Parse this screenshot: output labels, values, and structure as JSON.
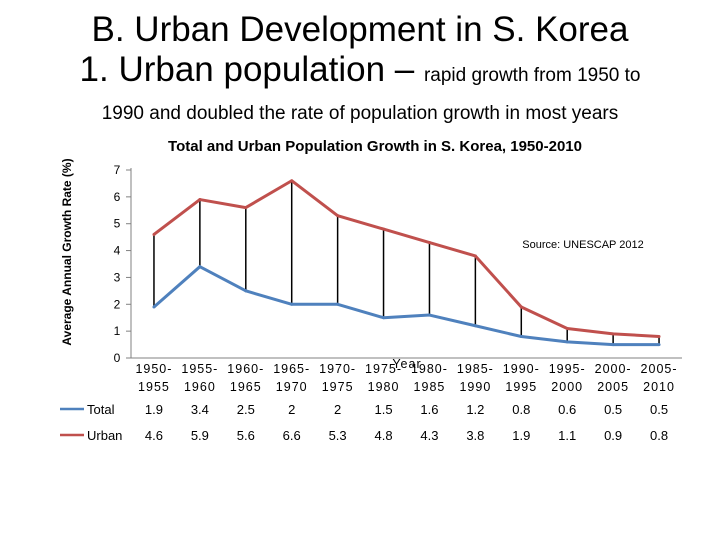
{
  "slide": {
    "title_line1": "B. Urban Development in S. Korea",
    "title_line2_main": "1. Urban population – ",
    "title_line2_small": "rapid growth from 1950 to",
    "title_line3": "1990 and doubled the rate of population growth in most years"
  },
  "chart_data": {
    "type": "line",
    "title": "Total and Urban Population Growth in S. Korea, 1950-2010",
    "xlabel": "Year",
    "ylabel": "Average Annual Growth Rate (%)",
    "ylim": [
      0,
      7
    ],
    "yticks": [
      "0",
      "1",
      "2",
      "3",
      "4",
      "5",
      "6",
      "7"
    ],
    "source": "Source: UNESCAP 2012",
    "categories": [
      {
        "top": "1950-",
        "bottom": "1955"
      },
      {
        "top": "1955-",
        "bottom": "1960"
      },
      {
        "top": "1960-",
        "bottom": "1965"
      },
      {
        "top": "1965-",
        "bottom": "1970"
      },
      {
        "top": "1970-",
        "bottom": "1975"
      },
      {
        "top": "1975-",
        "bottom": "1980"
      },
      {
        "top": "1980-",
        "bottom": "1985"
      },
      {
        "top": "1985-",
        "bottom": "1990"
      },
      {
        "top": "1990-",
        "bottom": "1995"
      },
      {
        "top": "1995-",
        "bottom": "2000"
      },
      {
        "top": "2000-",
        "bottom": "2005"
      },
      {
        "top": "2005-",
        "bottom": "2010"
      }
    ],
    "series": [
      {
        "name": "Total",
        "color": "#4f81bd",
        "values": [
          1.9,
          3.4,
          2.5,
          2,
          2,
          1.5,
          1.6,
          1.2,
          0.8,
          0.6,
          0.5,
          0.5
        ],
        "labels": [
          "1.9",
          "3.4",
          "2.5",
          "2",
          "2",
          "1.5",
          "1.6",
          "1.2",
          "0.8",
          "0.6",
          "0.5",
          "0.5"
        ]
      },
      {
        "name": "Urban",
        "color": "#c0504d",
        "values": [
          4.6,
          5.9,
          5.6,
          6.6,
          5.3,
          4.8,
          4.3,
          3.8,
          1.9,
          1.1,
          0.9,
          0.8
        ],
        "labels": [
          "4.6",
          "5.9",
          "5.6",
          "6.6",
          "5.3",
          "4.8",
          "4.3",
          "3.8",
          "1.9",
          "1.1",
          "0.9",
          "0.8"
        ]
      }
    ]
  }
}
